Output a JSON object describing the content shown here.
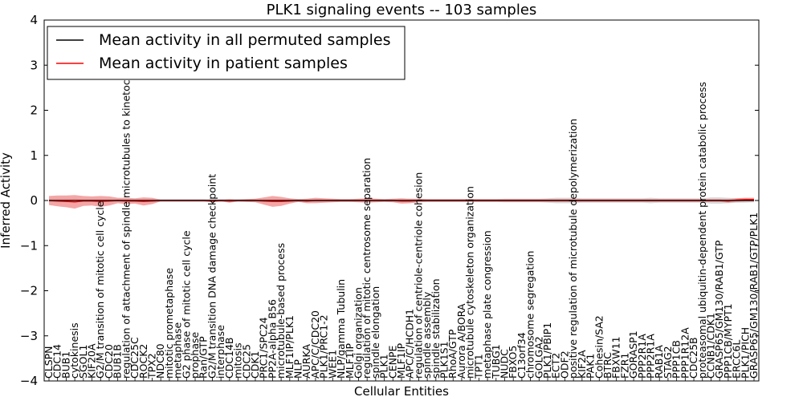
{
  "chart_data": {
    "type": "line",
    "title": "PLK1 signaling events -- 103 samples",
    "xlabel": "Cellular Entities",
    "ylabel": "Inferred Activity",
    "ylim": [
      -4,
      4
    ],
    "yticks": [
      4,
      3,
      2,
      1,
      0,
      -1,
      -2,
      -3,
      -4
    ],
    "ytick_labels": [
      "4",
      "3",
      "2",
      "1",
      "0",
      "−1",
      "−2",
      "−3",
      "−4"
    ],
    "legend": {
      "placement": "top-left",
      "entries": [
        {
          "label": "Mean activity in all permuted samples",
          "color": "#000000"
        },
        {
          "label": "Mean activity in patient samples",
          "color": "#ff0000"
        }
      ]
    },
    "categories": [
      "CLSPN",
      "CDC14",
      "BUB1",
      "cytokinesis",
      "SGOL1",
      "KIF20A",
      "G2/M transition of mitotic cell cycle",
      "CDC20",
      "BUB1B",
      "regulation of attachment of spindle microtubules to kinetochore",
      "CDC25C",
      "ROCK2",
      "TPX2",
      "NDC80",
      "mitotic prometaphase",
      "metaphase",
      "G2 phase of mitotic cell cycle",
      "prophase",
      "Ran/GTP",
      "G2/M transition DNA damage checkpoint",
      "interphase",
      "CDC14B",
      "mitosis",
      "CDC25",
      "CDK1",
      "PRC1/SPC24",
      "PP2A-alpha B56",
      "microtubule-based process",
      "MLF1IP/PLK1",
      "NLP",
      "AURKA",
      "APC/C/CDC20",
      "PLK1/PRC1-2",
      "WEE1",
      "NLP/gamma Tubulin",
      "MLF1IP",
      "Golgi organization",
      "regulation of mitotic centrosome separation",
      "spindle elongation",
      "PLK1",
      "CENPE",
      "MLF1IP",
      "APC/C/HCDH1",
      "regulation of centriole-centriole cohesion",
      "spindle assembly",
      "spindle stabilization",
      "PLK1S1",
      "RhoA/GTP",
      "Aurora A/BORA",
      "microtubule cytoskeleton organization",
      "TPT1",
      "metaphase plate congression",
      "TUBG1",
      "NUDC",
      "FBXO5",
      "C13orf34",
      "chromosome segregation",
      "GOLGA2",
      "PLK1/PBIP1",
      "ECT2",
      "ODF2",
      "positive regulation of microtubule depolymerization",
      "KIF2A",
      "PAK1",
      "Cohesin/SA2",
      "BTRC",
      "FBXW11",
      "FZR1",
      "GORASP1",
      "PPP2R1A",
      "PPP2R1A",
      "RAB1A",
      "STAG2",
      "PPP1CB",
      "PPP1R12A",
      "CDC25B",
      "proteasomal ubiquitin-dependent protein catabolic process",
      "CCNB1/CDK1",
      "GRASP65/GM130/RAB1/GTP",
      "PPP1CB/MYPT1",
      "ERCC6L",
      "PLK1/PICH",
      "GRASP65/GM130/RAB1/GTP/PLK1"
    ],
    "series": [
      {
        "name": "Mean activity in all permuted samples",
        "color": "#000000",
        "values": [
          0,
          0,
          0,
          0,
          0,
          0,
          0,
          0,
          0,
          0,
          0,
          0,
          0,
          0,
          0,
          0,
          0,
          0,
          0,
          0,
          0,
          0,
          0,
          0,
          0,
          0,
          0,
          0,
          0,
          0,
          0,
          0,
          0,
          0,
          0,
          0,
          0,
          0,
          0,
          0,
          0,
          0,
          0,
          0,
          0,
          0,
          0,
          0,
          0,
          0,
          0,
          0,
          0,
          0,
          0,
          0,
          0,
          0,
          0,
          0,
          0,
          0,
          0,
          0,
          0,
          0,
          0,
          0,
          0,
          0,
          0,
          0,
          0,
          0,
          0,
          0,
          0,
          0,
          0,
          0,
          0,
          0,
          0
        ],
        "band_halfwidth": [
          0.04,
          0.04,
          0.04,
          0.04,
          0.03,
          0.03,
          0.03,
          0.03,
          0.03,
          0.03,
          0.03,
          0.03,
          0.03,
          0.03,
          0.03,
          0.03,
          0.03,
          0.03,
          0.03,
          0.03,
          0.03,
          0.03,
          0.03,
          0.03,
          0.03,
          0.03,
          0.03,
          0.03,
          0.03,
          0.03,
          0.03,
          0.03,
          0.03,
          0.03,
          0.03,
          0.03,
          0.03,
          0.03,
          0.03,
          0.03,
          0.03,
          0.03,
          0.03,
          0.03,
          0.03,
          0.03,
          0.03,
          0.03,
          0.03,
          0.03,
          0.03,
          0.03,
          0.03,
          0.04,
          0.04,
          0.04,
          0.04,
          0.04,
          0.05,
          0.06,
          0.06,
          0.06,
          0.05,
          0.05,
          0.05,
          0.05,
          0.05,
          0.05,
          0.05,
          0.05,
          0.06,
          0.05,
          0.05,
          0.05,
          0.05,
          0.05,
          0.05,
          0.07,
          0.07,
          0.06,
          0.05,
          0.05,
          0.04
        ]
      },
      {
        "name": "Mean activity in patient samples",
        "color": "#ff0000",
        "values": [
          0,
          -0.01,
          -0.02,
          -0.03,
          -0.01,
          -0.01,
          -0.02,
          -0.01,
          0,
          -0.01,
          -0.01,
          -0.02,
          -0.01,
          0,
          0,
          0,
          0,
          0,
          0,
          -0.01,
          0,
          -0.01,
          0,
          0,
          0,
          -0.01,
          -0.02,
          -0.02,
          -0.01,
          0,
          -0.01,
          0,
          0,
          0,
          0,
          0,
          0,
          0,
          0,
          0,
          0,
          -0.01,
          -0.01,
          0,
          0,
          0,
          0,
          0,
          0,
          0,
          0,
          0,
          0,
          0,
          0,
          0,
          0,
          0,
          0,
          0,
          0,
          0,
          0,
          0,
          0,
          0,
          0,
          0,
          0,
          0,
          0,
          0,
          0,
          0,
          0,
          0,
          0,
          0,
          0,
          -0.01,
          0.01,
          0.02,
          0.02
        ],
        "band_halfwidth": [
          0.1,
          0.12,
          0.13,
          0.15,
          0.11,
          0.1,
          0.12,
          0.1,
          0.06,
          0.07,
          0.06,
          0.09,
          0.07,
          0.02,
          0.02,
          0.02,
          0.02,
          0.02,
          0.02,
          0.03,
          0.02,
          0.04,
          0.02,
          0.03,
          0.04,
          0.08,
          0.12,
          0.1,
          0.06,
          0.03,
          0.05,
          0.06,
          0.05,
          0.04,
          0.03,
          0.03,
          0.04,
          0.05,
          0.04,
          0.03,
          0.04,
          0.06,
          0.05,
          0.04,
          0.03,
          0.03,
          0.03,
          0.03,
          0.03,
          0.03,
          0.03,
          0.03,
          0.03,
          0.03,
          0.03,
          0.03,
          0.03,
          0.03,
          0.03,
          0.03,
          0.03,
          0.03,
          0.03,
          0.03,
          0.03,
          0.03,
          0.03,
          0.03,
          0.03,
          0.03,
          0.03,
          0.03,
          0.03,
          0.03,
          0.03,
          0.03,
          0.03,
          0.03,
          0.03,
          0.04,
          0.04,
          0.04,
          0.04
        ]
      }
    ]
  }
}
